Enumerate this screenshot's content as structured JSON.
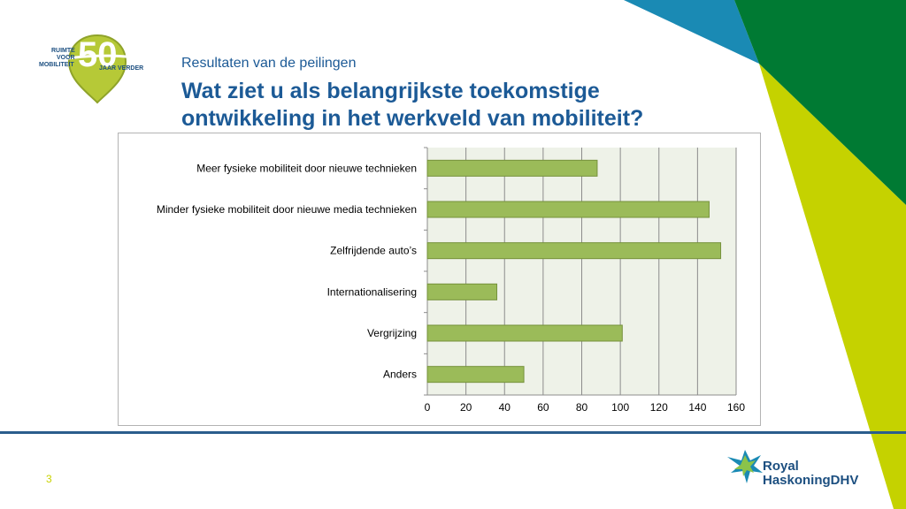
{
  "header": {
    "subtitle": "Resultaten van de peilingen",
    "title": "Wat ziet u als belangrijkste toekomstige ontwikkeling in het werkveld van mobiliteit?"
  },
  "logo_50": {
    "line1": "RUIMTE",
    "line2": "VOOR",
    "line3": "MOBILITEIT",
    "number": "50",
    "tagline": "JAAR VERDER"
  },
  "brand": {
    "line1": "Royal",
    "line2": "HaskoningDHV"
  },
  "footer": {
    "page_number": "3"
  },
  "colors": {
    "bar_fill": "#9bbb59",
    "bar_stroke": "#76923c",
    "plot_bg": "#eef2e8",
    "title": "#1c5a96",
    "deco_blue": "#1a8ab4",
    "deco_dark_green": "#007a33",
    "deco_lime": "#c5d200"
  },
  "chart_data": {
    "type": "bar",
    "orientation": "horizontal",
    "categories": [
      "Meer fysieke mobiliteit door nieuwe technieken",
      "Minder fysieke mobiliteit door nieuwe media technieken",
      "Zelfrijdende auto’s",
      "Internationalisering",
      "Vergrijzing",
      "Anders"
    ],
    "values": [
      88,
      146,
      152,
      36,
      101,
      50
    ],
    "xlim": [
      0,
      160
    ],
    "xticks": [
      "0",
      "20",
      "40",
      "60",
      "80",
      "100",
      "120",
      "140",
      "160"
    ],
    "grid": true,
    "legend": false
  }
}
